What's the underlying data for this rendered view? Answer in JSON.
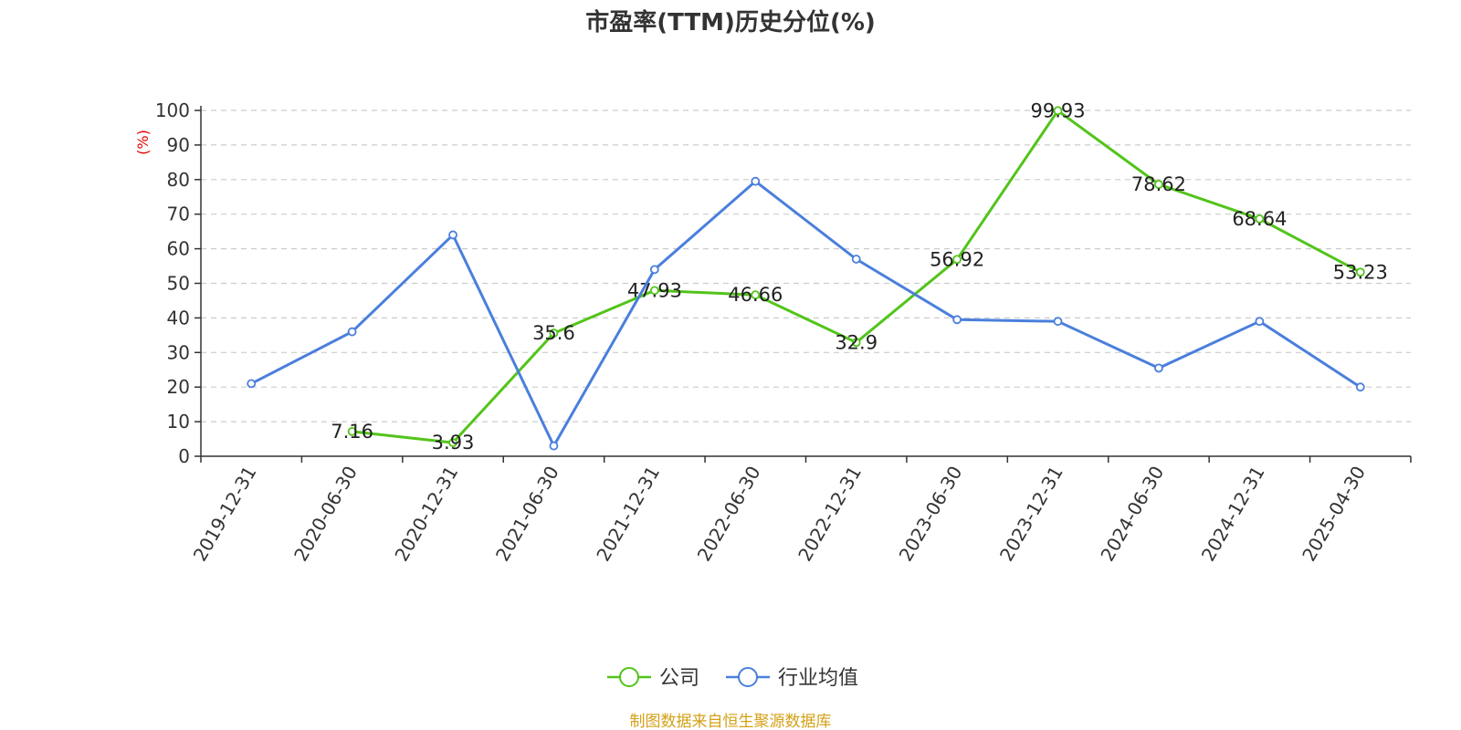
{
  "colors": {
    "company": "#52c41a",
    "industry": "#4a7fdc",
    "unit": "#e60000",
    "source": "#d4a017",
    "axis": "#333333",
    "grid": "#cccccc"
  },
  "chart_data": {
    "type": "line",
    "title": "市盈率(TTM)历史分位(%)",
    "ylabel": "(%)",
    "ylim": [
      0,
      100
    ],
    "yticks": [
      0,
      10,
      20,
      30,
      40,
      50,
      60,
      70,
      80,
      90,
      100
    ],
    "categories": [
      "2019-12-31",
      "2020-06-30",
      "2020-12-31",
      "2021-06-30",
      "2021-12-31",
      "2022-06-30",
      "2022-12-31",
      "2023-06-30",
      "2023-12-31",
      "2024-06-30",
      "2024-12-31",
      "2025-04-30"
    ],
    "grid": "horizontal-dashed",
    "legend_position": "bottom-center",
    "series": [
      {
        "name": "公司",
        "color": "#52c41a",
        "values": [
          null,
          7.16,
          3.93,
          35.6,
          47.93,
          46.66,
          32.9,
          56.92,
          99.93,
          78.62,
          68.64,
          53.23
        ],
        "labels": [
          "",
          "7.16",
          "3.93",
          "35.6",
          "47.93",
          "46.66",
          "32.9",
          "56.92",
          "99.93",
          "78.62",
          "68.64",
          "53.23"
        ]
      },
      {
        "name": "行业均值",
        "color": "#4a7fdc",
        "values": [
          21,
          36,
          64,
          3,
          54,
          79.5,
          57,
          39.5,
          39,
          25.5,
          39,
          20
        ]
      }
    ]
  },
  "source": "制图数据来自恒生聚源数据库"
}
